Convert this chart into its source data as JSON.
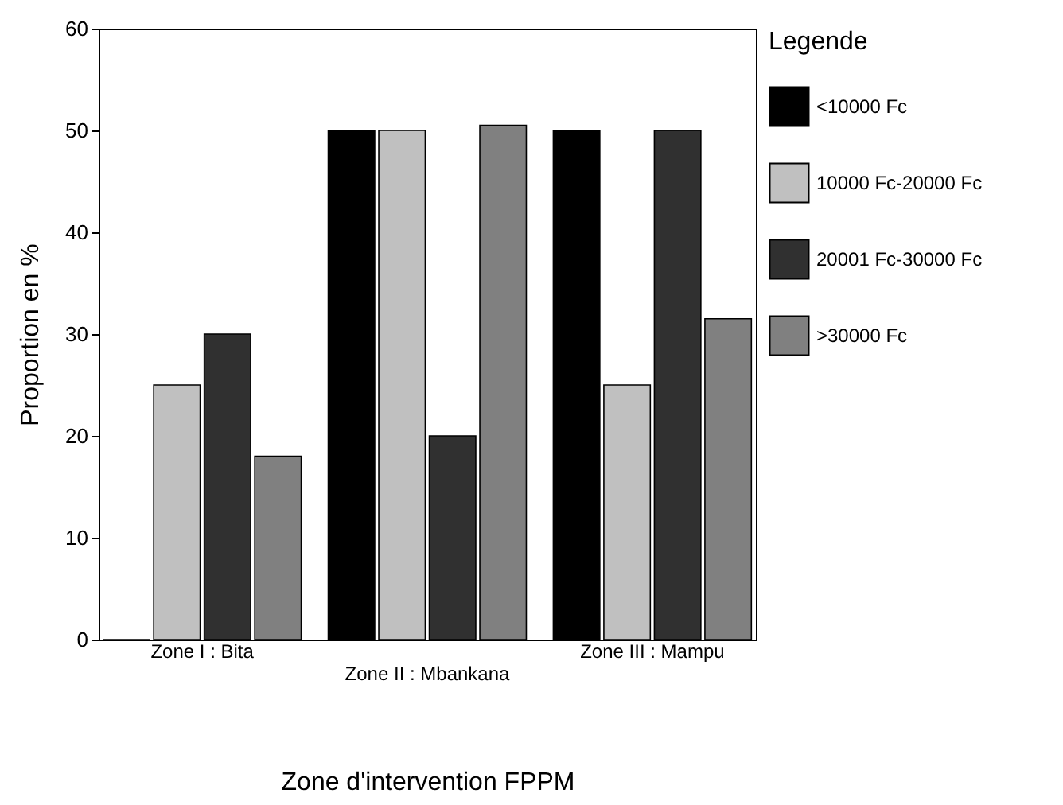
{
  "chart_data": {
    "type": "bar",
    "xlabel": "Zone d'intervention FPPM",
    "ylabel": "Proportion en %",
    "legend_title": "Legende",
    "categories": [
      "Zone I : Bita",
      "Zone II : Mbankana",
      "Zone III : Mampu"
    ],
    "series": [
      {
        "name": "<10000 Fc",
        "color": "#000000",
        "values": [
          0,
          50,
          50
        ]
      },
      {
        "name": "10000 Fc-20000 Fc",
        "color": "#c0c0c0",
        "values": [
          25,
          50,
          25
        ]
      },
      {
        "name": "20001 Fc-30000 Fc",
        "color": "#303030",
        "values": [
          30,
          20,
          50
        ]
      },
      {
        "name": ">30000 Fc",
        "color": "#808080",
        "values": [
          18,
          50.5,
          31.5
        ]
      }
    ],
    "ylim": [
      0,
      60
    ],
    "yticks": [
      0,
      10,
      20,
      30,
      40,
      50,
      60
    ],
    "grid": false,
    "legend": "right"
  }
}
